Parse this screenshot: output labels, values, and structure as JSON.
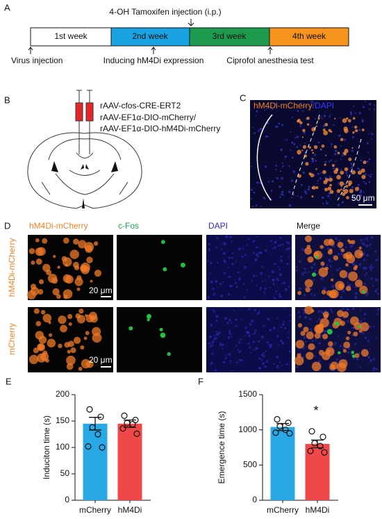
{
  "panel_a": {
    "letter": "A",
    "injection": "4-OH Tamoxifen injection (i.p.)",
    "weeks": [
      "1st week",
      "2nd week",
      "3rd week",
      "4th week"
    ],
    "events": [
      "Virus injection",
      "Inducing hM4Di expression",
      "Ciprofol anesthesia test"
    ]
  },
  "panel_b": {
    "letter": "B",
    "viruses": [
      "rAAV-cfos-CRE-ERT2",
      "rAAV-EF1α-DIO-mCherry/",
      "rAAV-EF1α-DIO-hM4Di-mCherry"
    ]
  },
  "panel_c": {
    "letter": "C",
    "label_red": "hM4Di-mCherry",
    "label_blue": "/DAPI",
    "scale": "50 μm"
  },
  "panel_d": {
    "letter": "D",
    "columns": [
      "hM4Di-mCherry",
      "c-Fos",
      "DAPI",
      "Merge"
    ],
    "rows": [
      "hM4Di-mCherry",
      "mCherry"
    ],
    "scales": [
      "20 μm",
      "20 μm"
    ]
  },
  "chart_data": [
    {
      "type": "bar",
      "panel_label": "E",
      "y_label": "Induciton time (s)",
      "categories": [
        "mCherry",
        "hM4Di"
      ],
      "values": [
        145,
        145
      ],
      "errors": [
        12,
        7
      ],
      "points": [
        [
          172,
          158,
          138,
          125,
          102,
          100
        ],
        [
          160,
          152,
          146,
          144,
          136,
          126
        ]
      ],
      "colors": [
        "#29a8e6",
        "#f04848"
      ],
      "ylim": [
        0,
        200
      ],
      "yticks": [
        0,
        50,
        100,
        150,
        200
      ]
    },
    {
      "type": "bar",
      "panel_label": "F",
      "y_label": "Emergence time (s)",
      "categories": [
        "mCherry",
        "hM4Di"
      ],
      "values": [
        1040,
        800
      ],
      "errors": [
        50,
        55
      ],
      "points": [
        [
          1150,
          1100,
          1050,
          1000,
          960,
          950
        ],
        [
          980,
          900,
          810,
          770,
          700,
          680
        ]
      ],
      "colors": [
        "#29a8e6",
        "#f04848"
      ],
      "ylim": [
        0,
        1500
      ],
      "yticks": [
        0,
        500,
        1000,
        1500
      ],
      "annotation": "*"
    }
  ]
}
